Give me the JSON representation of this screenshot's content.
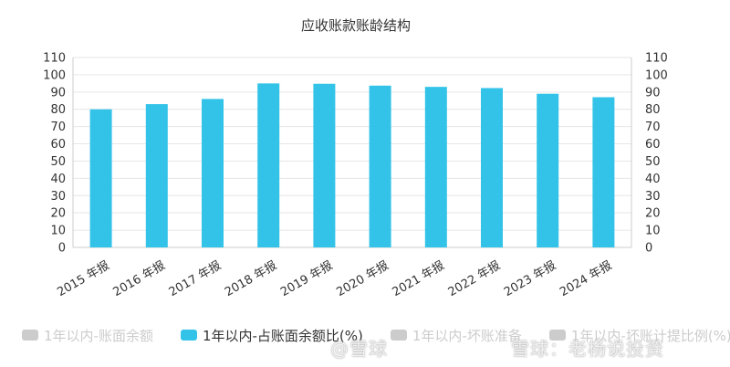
{
  "chart_data": {
    "type": "bar",
    "title": "应收账款账龄结构",
    "categories": [
      "2015 年报",
      "2016 年报",
      "2017 年报",
      "2018 年报",
      "2019 年报",
      "2020 年报",
      "2021 年报",
      "2022 年报",
      "2023 年报",
      "2024 年报"
    ],
    "series": [
      {
        "name": "1年以内-占账面余额比(%)",
        "values": [
          80,
          83,
          86,
          95,
          94.8,
          93.7,
          93,
          92.3,
          89,
          87
        ]
      }
    ],
    "ylim": [
      0,
      110
    ],
    "yticks": [
      0,
      10,
      20,
      30,
      40,
      50,
      60,
      70,
      80,
      90,
      100,
      110
    ],
    "y2ticks": [
      0,
      10,
      20,
      30,
      40,
      50,
      60,
      70,
      80,
      90,
      100,
      110
    ],
    "grid": true,
    "legend_position": "bottom-left",
    "bar_color": "#33c3e8"
  },
  "legend": [
    {
      "label": "1年以内-账面余额",
      "color": "#cccccc",
      "active": false
    },
    {
      "label": "1年以内-占账面余额比(%)",
      "color": "#33c3e8",
      "active": true
    },
    {
      "label": "1年以内-坏账准备",
      "color": "#cccccc",
      "active": false
    },
    {
      "label": "1年以内-坏账计提比例(%)",
      "color": "#cccccc",
      "active": false
    }
  ],
  "watermark": {
    "left": "@雪球",
    "right": "雪球：老杨说投资"
  }
}
